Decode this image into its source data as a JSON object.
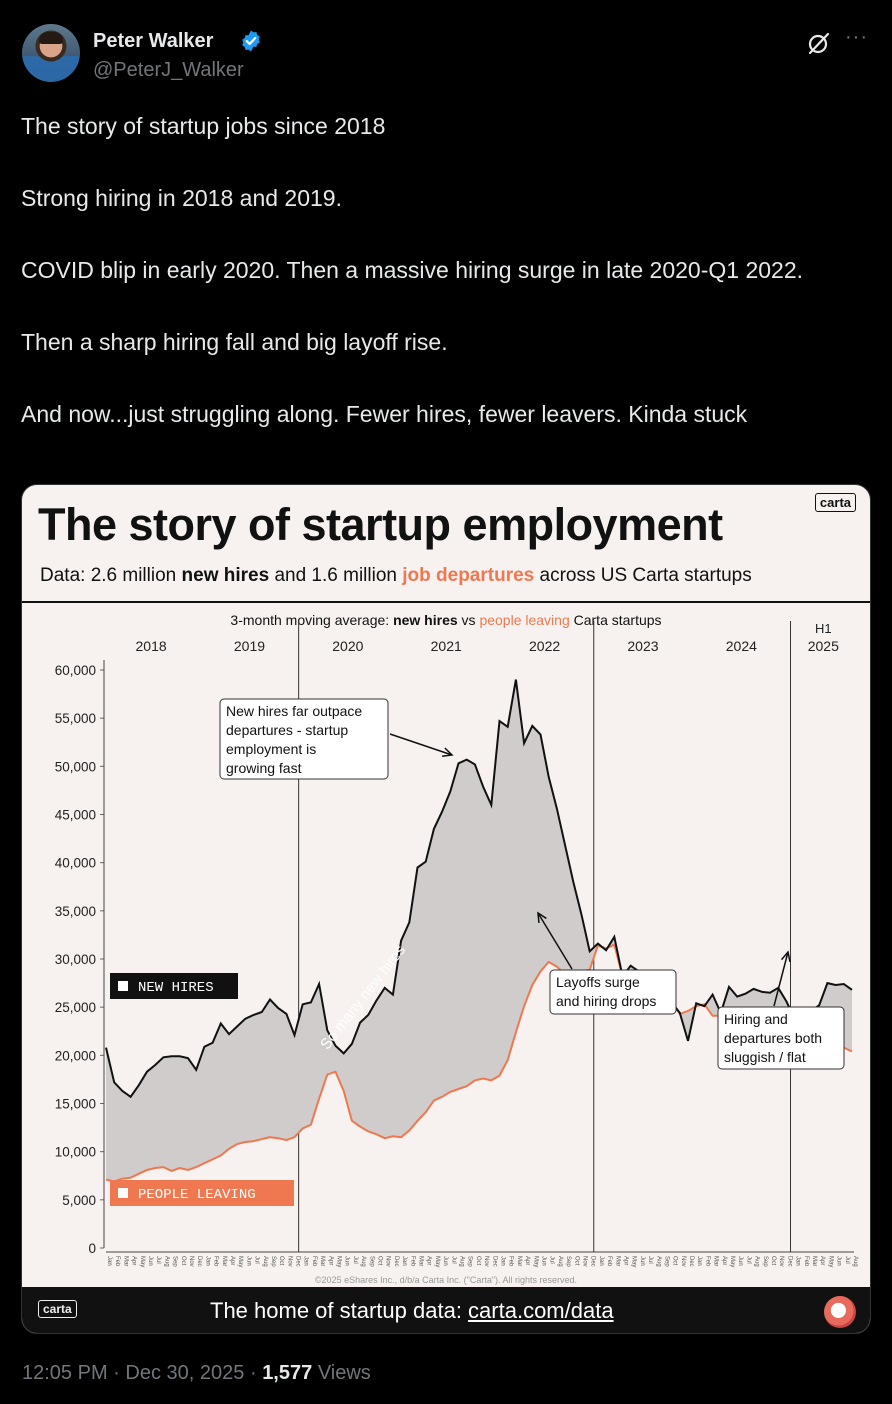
{
  "author": {
    "name": "Peter Walker",
    "handle": "@PeterJ_Walker"
  },
  "tweet": {
    "lines": [
      "The story of startup jobs since 2018",
      "",
      "Strong hiring in 2018 and 2019.",
      "",
      "COVID blip in early 2020. Then a massive hiring surge in late 2020-Q1 2022.",
      "",
      "Then a sharp hiring fall and big layoff rise.",
      "",
      "And now...just struggling along. Fewer hires, fewer leavers. Kinda stuck"
    ]
  },
  "meta": {
    "time": "12:05 PM",
    "sep1": "·",
    "date": "Dec 30, 2025",
    "sep2": "·",
    "views_count": "1,577",
    "views_label": "Views"
  },
  "media": {
    "title": "The story of startup employment",
    "logo": "carta",
    "subtitle": {
      "p1": "Data: 2.6 million ",
      "p2": "new hires",
      "p3": " and 1.6 million ",
      "p4": "job departures",
      "p5": " across US Carta startups"
    },
    "footer": {
      "logo": "carta",
      "text": "The home of startup data: ",
      "link": "carta.com/data"
    }
  },
  "chart_data": {
    "type": "area",
    "title_parts": [
      "3-month moving average: ",
      "new hires",
      " vs ",
      "people leaving",
      " Carta startups"
    ],
    "ylim": [
      0,
      60000
    ],
    "yticks": [
      0,
      5000,
      10000,
      15000,
      20000,
      25000,
      30000,
      35000,
      40000,
      45000,
      50000,
      55000,
      60000
    ],
    "ytick_labels": [
      "0",
      "5,000",
      "10,000",
      "15,000",
      "20,000",
      "25,000",
      "30,000",
      "35,000",
      "40,000",
      "45,000",
      "50,000",
      "55,000",
      "60,000"
    ],
    "year_labels": [
      "2018",
      "2019",
      "2020",
      "2021",
      "2022",
      "2023",
      "2024",
      "2025"
    ],
    "h1_label": "H1",
    "month_labels": [
      "Jan",
      "Feb",
      "Mar",
      "Apr",
      "May",
      "Jun",
      "Jul",
      "Aug",
      "Sep",
      "Oct",
      "Nov",
      "Dec"
    ],
    "legend": {
      "new_hires": "NEW HIRES",
      "people_leaving": "PEOPLE LEAVING"
    },
    "colors": {
      "new_hires": "#111111",
      "people_leaving": "#f07850",
      "fill": "#cfcccb"
    },
    "series": [
      {
        "name": "New hires",
        "values": [
          20800,
          17200,
          16300,
          15700,
          16900,
          18300,
          19000,
          19800,
          19900,
          19900,
          19700,
          18500,
          20900,
          21300,
          23300,
          22200,
          23000,
          23800,
          24200,
          24500,
          25800,
          24900,
          24300,
          22100,
          25300,
          25500,
          27400,
          22600,
          21000,
          20200,
          21200,
          23400,
          24200,
          25700,
          27000,
          26300,
          31900,
          33800,
          39500,
          40100,
          43500,
          45300,
          47400,
          50300,
          50700,
          50200,
          47900,
          46000,
          54700,
          54100,
          59000,
          52400,
          54200,
          53300,
          48900,
          45600,
          41800,
          38000,
          34600,
          30800,
          31600,
          30900,
          32300,
          28200,
          29300,
          28700,
          28500,
          27200,
          26900,
          25500,
          24400,
          21500,
          25400,
          25100,
          26300,
          24400,
          27100,
          26100,
          26400,
          26900,
          26600,
          26500,
          27000,
          25600,
          23800,
          22300,
          24600,
          25200,
          27500,
          27300,
          27400,
          26800
        ]
      },
      {
        "name": "People leaving",
        "values": [
          7100,
          6900,
          7200,
          7300,
          7700,
          8100,
          8300,
          8400,
          8000,
          8300,
          8100,
          8400,
          8800,
          9200,
          9600,
          10300,
          10800,
          11000,
          11100,
          11300,
          11500,
          11400,
          11200,
          11500,
          12400,
          12800,
          15500,
          18000,
          18300,
          16300,
          13200,
          12600,
          12100,
          11800,
          11400,
          11600,
          11500,
          12200,
          13200,
          14100,
          15300,
          15700,
          16200,
          16500,
          16800,
          17400,
          17600,
          17400,
          17900,
          19500,
          22400,
          25100,
          27300,
          28700,
          29700,
          29200,
          28400,
          28700,
          28700,
          28900,
          31400,
          31100,
          31500,
          28200,
          27800,
          27600,
          27400,
          26700,
          26200,
          25600,
          24300,
          24600,
          25100,
          25300,
          24100,
          24100,
          23600,
          23100,
          22900,
          22700,
          22500,
          22400,
          21800,
          21100,
          20400,
          20700,
          21300,
          21100,
          22100,
          20900,
          20800,
          20400
        ]
      }
    ],
    "annotations": [
      {
        "lines": [
          "New hires  far outpace",
          "departures  - startup",
          "employment is",
          "growing fast"
        ]
      },
      {
        "lines": [
          "Layoffs surge",
          "and hiring drops"
        ]
      },
      {
        "lines": [
          "Hiring and",
          "departures both",
          "sluggish / flat"
        ]
      }
    ],
    "area_label": "So many new hires",
    "copyright": "©2025 eShares Inc., d/b/a Carta Inc. (\"Carta\"). All rights reserved."
  }
}
